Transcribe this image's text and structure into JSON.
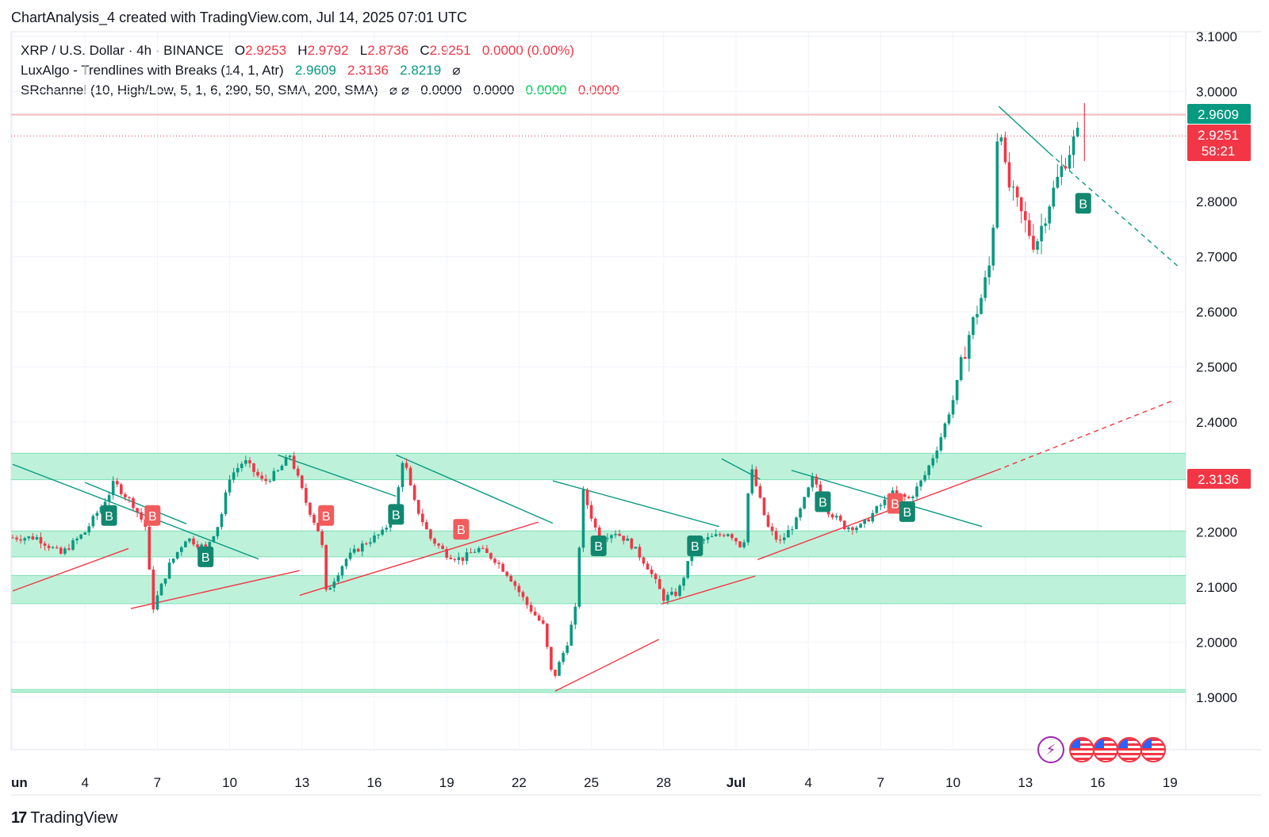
{
  "header": {
    "created_text": "ChartAnalysis_4 created with TradingView.com, Jul 14, 2025 07:01 UTC"
  },
  "legend": {
    "symbol": "XRP / U.S. Dollar · 4h · BINANCE",
    "o_label": "O",
    "o_value": "2.9253",
    "h_label": "H",
    "h_value": "2.9792",
    "l_label": "L",
    "l_value": "2.8736",
    "c_label": "C",
    "c_value": "2.9251",
    "change": "0.0000 (0.00%)",
    "indicator1_name": "LuxAlgo - Trendlines with Breaks (14, 1, Atr)",
    "indicator1_v1": "2.9609",
    "indicator1_v2": "2.3136",
    "indicator1_v3": "2.8219",
    "indicator1_icon": "⌀",
    "indicator2_name": "SRchannel (10, High/Low, 5, 1, 6, 290, 50, SMA, 200, SMA)",
    "indicator2_icons": "⌀ ⌀",
    "indicator2_v1": "0.0000",
    "indicator2_v2": "0.0000",
    "indicator2_v3": "0.0000",
    "indicator2_v4": "0.0000"
  },
  "price_tags": {
    "upper": "2.9609",
    "last": "2.9251",
    "countdown": "58:21",
    "lower": "2.3136"
  },
  "footer": {
    "brand": "TradingView",
    "logo_mark": "17"
  },
  "colors": {
    "up": "#089981",
    "down": "#f23645",
    "zone_fill": "#b7f0d6",
    "zone_line": "#7ee0b4",
    "grid": "#f0f3fa"
  },
  "chart_data": {
    "type": "candlestick",
    "title": "XRP / U.S. Dollar · 4h · BINANCE",
    "ylim": [
      1.82,
      3.12
    ],
    "y_ticks": [
      "3.1000",
      "3.0000",
      "2.8000",
      "2.7000",
      "2.6000",
      "2.5000",
      "2.4000",
      "2.2000",
      "2.1000",
      "2.0000",
      "1.9000"
    ],
    "x_ticks": [
      "un",
      "4",
      "7",
      "10",
      "13",
      "16",
      "19",
      "22",
      "25",
      "28",
      "Jul",
      "4",
      "7",
      "10",
      "13",
      "16",
      "19"
    ],
    "grid": true,
    "sr_zones": [
      {
        "low": 2.295,
        "high": 2.343
      },
      {
        "low": 2.155,
        "high": 2.202
      },
      {
        "low": 2.07,
        "high": 2.121
      },
      {
        "low": 1.909,
        "high": 1.914
      }
    ],
    "resistance_line": 2.9609,
    "last_price": 2.9251,
    "price_path": [
      [
        1,
        2.19
      ],
      [
        2,
        2.16
      ],
      [
        3,
        2.2
      ],
      [
        4,
        2.27
      ],
      [
        4.2,
        2.29
      ],
      [
        5,
        2.25
      ],
      [
        5.5,
        2.21
      ],
      [
        5.8,
        2.06
      ],
      [
        6.5,
        2.14
      ],
      [
        7.2,
        2.19
      ],
      [
        8,
        2.17
      ],
      [
        8.6,
        2.22
      ],
      [
        9,
        2.3
      ],
      [
        9.6,
        2.33
      ],
      [
        10.4,
        2.29
      ],
      [
        11,
        2.31
      ],
      [
        11.5,
        2.34
      ],
      [
        12.2,
        2.25
      ],
      [
        12.8,
        2.19
      ],
      [
        13,
        2.09
      ],
      [
        13.8,
        2.15
      ],
      [
        14.6,
        2.18
      ],
      [
        15.4,
        2.2
      ],
      [
        15.9,
        2.25
      ],
      [
        16.2,
        2.34
      ],
      [
        16.6,
        2.26
      ],
      [
        17.3,
        2.19
      ],
      [
        18,
        2.16
      ],
      [
        18.6,
        2.15
      ],
      [
        19.3,
        2.17
      ],
      [
        20,
        2.15
      ],
      [
        20.6,
        2.12
      ],
      [
        21.3,
        2.07
      ],
      [
        22,
        2.03
      ],
      [
        22.4,
        1.93
      ],
      [
        23,
        2.0
      ],
      [
        23.4,
        2.07
      ],
      [
        23.6,
        2.28
      ],
      [
        24.3,
        2.19
      ],
      [
        25,
        2.2
      ],
      [
        25.6,
        2.18
      ],
      [
        26.3,
        2.14
      ],
      [
        27,
        2.08
      ],
      [
        27.6,
        2.09
      ],
      [
        28.3,
        2.18
      ],
      [
        29,
        2.19
      ],
      [
        29.7,
        2.2
      ],
      [
        30.3,
        2.17
      ],
      [
        30.6,
        2.32
      ],
      [
        31.3,
        2.21
      ],
      [
        31.8,
        2.18
      ],
      [
        32.5,
        2.22
      ],
      [
        33.2,
        2.3
      ],
      [
        33.8,
        2.24
      ],
      [
        34.5,
        2.21
      ],
      [
        35.2,
        2.21
      ],
      [
        35.8,
        2.24
      ],
      [
        36.5,
        2.27
      ],
      [
        37.2,
        2.26
      ],
      [
        37.8,
        2.3
      ],
      [
        38.4,
        2.36
      ],
      [
        39,
        2.44
      ],
      [
        39.6,
        2.55
      ],
      [
        40.2,
        2.63
      ],
      [
        40.6,
        2.7
      ],
      [
        40.9,
        2.98
      ],
      [
        41.2,
        2.84
      ],
      [
        41.8,
        2.78
      ],
      [
        42.4,
        2.72
      ],
      [
        43,
        2.8
      ],
      [
        43.5,
        2.86
      ],
      [
        44.0,
        2.91
      ],
      [
        44.3,
        2.93
      ]
    ],
    "markers": [
      {
        "label": "B",
        "type": "buy",
        "x": 4,
        "price": 2.23
      },
      {
        "label": "B",
        "type": "sell",
        "x": 5.8,
        "price": 2.23
      },
      {
        "label": "B",
        "type": "buy",
        "x": 8,
        "price": 2.155
      },
      {
        "label": "B",
        "type": "sell",
        "x": 13,
        "price": 2.23
      },
      {
        "label": "B",
        "type": "buy",
        "x": 15.9,
        "price": 2.232
      },
      {
        "label": "B",
        "type": "sell",
        "x": 18.6,
        "price": 2.205
      },
      {
        "label": "B",
        "type": "buy",
        "x": 24.3,
        "price": 2.175
      },
      {
        "label": "B",
        "type": "buy",
        "x": 28.3,
        "price": 2.175
      },
      {
        "label": "B",
        "type": "buy",
        "x": 33.6,
        "price": 2.255
      },
      {
        "label": "B",
        "type": "sell",
        "x": 36.6,
        "price": 2.252
      },
      {
        "label": "B",
        "type": "buy",
        "x": 37.1,
        "price": 2.237
      },
      {
        "label": "B",
        "type": "buy",
        "x": 44.4,
        "price": 2.797
      }
    ],
    "trendlines_down": [
      [
        [
          0,
          2.323
        ],
        [
          10.2,
          2.151
        ]
      ],
      [
        [
          3,
          2.29
        ],
        [
          7.2,
          2.215
        ]
      ],
      [
        [
          11,
          2.34
        ],
        [
          15.9,
          2.265
        ]
      ],
      [
        [
          15.9,
          2.34
        ],
        [
          22.4,
          2.216
        ]
      ],
      [
        [
          22.4,
          2.293
        ],
        [
          29.3,
          2.21
        ]
      ],
      [
        [
          29.4,
          2.333
        ],
        [
          31,
          2.296
        ]
      ],
      [
        [
          32.3,
          2.312
        ],
        [
          40.2,
          2.21
        ]
      ],
      [
        [
          40.9,
          2.973
        ],
        [
          43.0,
          2.888
        ]
      ]
    ],
    "trendline_down_projection": [
      [
        43.0,
        2.888
      ],
      [
        48.4,
        2.68
      ]
    ],
    "trendlines_up": [
      [
        [
          0,
          2.093
        ],
        [
          4.8,
          2.17
        ]
      ],
      [
        [
          4.9,
          2.061
        ],
        [
          11.9,
          2.13
        ]
      ],
      [
        [
          11.9,
          2.085
        ],
        [
          21.8,
          2.218
        ]
      ],
      [
        [
          22.5,
          1.911
        ],
        [
          26.8,
          2.005
        ]
      ],
      [
        [
          26.9,
          2.069
        ],
        [
          30.8,
          2.12
        ]
      ],
      [
        [
          30.9,
          2.15
        ],
        [
          40.8,
          2.312
        ]
      ]
    ],
    "trendline_up_projection": [
      [
        40.8,
        2.312
      ],
      [
        48.2,
        2.44
      ]
    ]
  }
}
